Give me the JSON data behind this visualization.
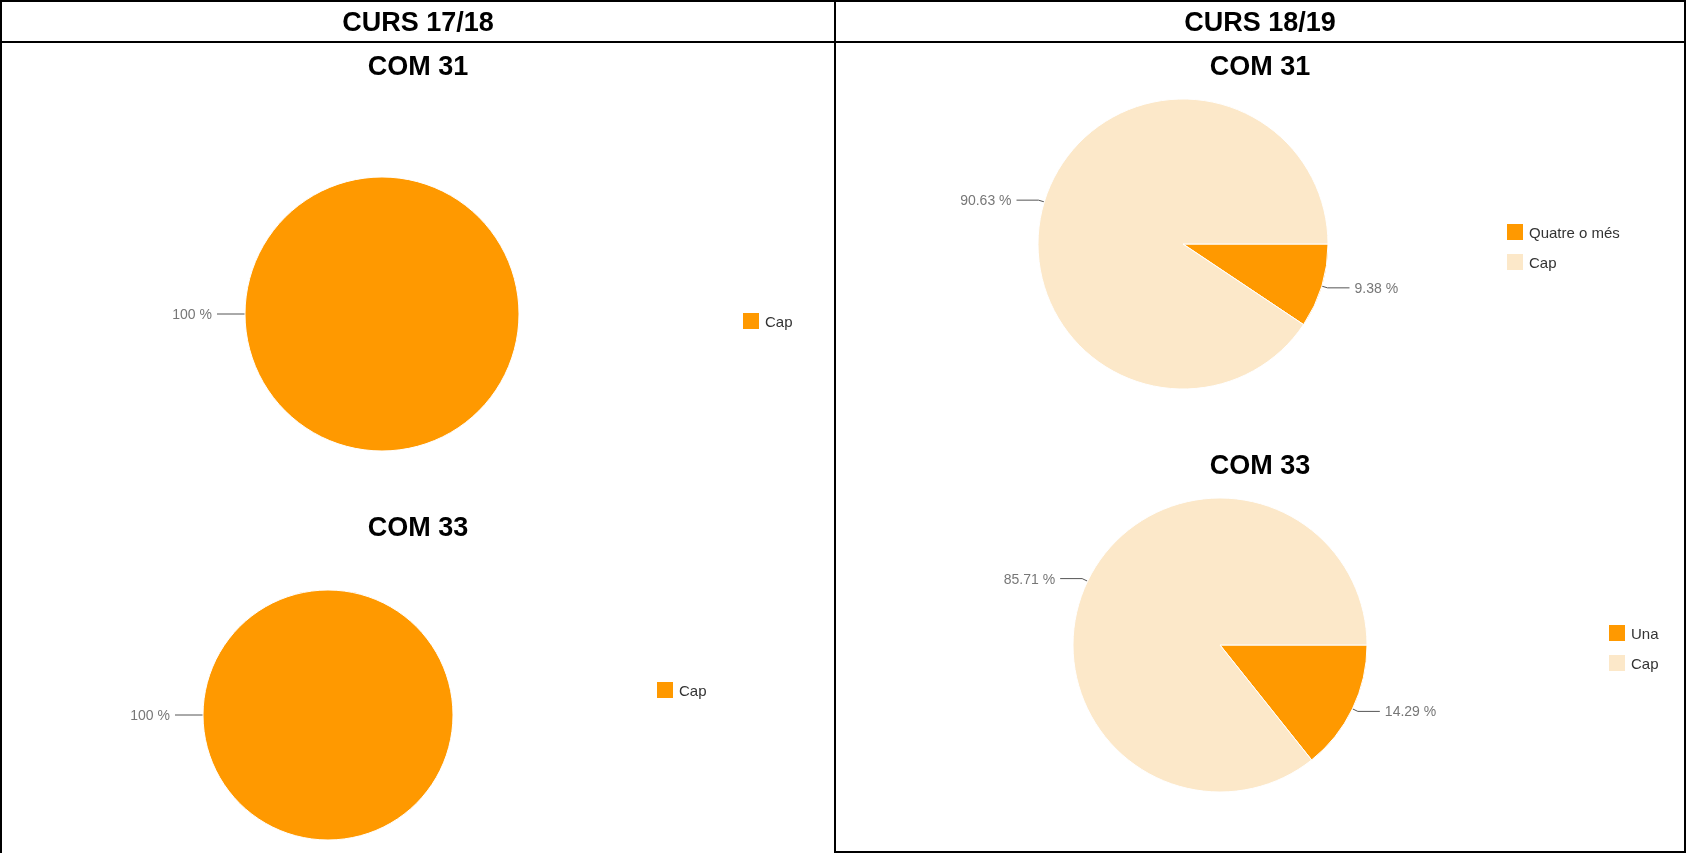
{
  "chart_data": [
    {
      "type": "pie",
      "subtitle": "CURS  17/18",
      "title": "COM 31",
      "categories": [
        "Cap"
      ],
      "values": [
        100
      ],
      "colors": [
        "#ff9900"
      ],
      "value_labels": [
        "100 %"
      ],
      "legend": "right"
    },
    {
      "type": "pie",
      "subtitle": "CURS  18/19",
      "title": "COM 31",
      "categories": [
        "Quatre o més",
        "Cap"
      ],
      "values": [
        9.38,
        90.63
      ],
      "colors": [
        "#ff9900",
        "#fce8c9"
      ],
      "value_labels": [
        "9.38 %",
        "90.63 %"
      ],
      "legend": "right"
    },
    {
      "type": "pie",
      "title": "COM 33",
      "categories": [
        "Cap"
      ],
      "values": [
        100
      ],
      "colors": [
        "#ff9900"
      ],
      "value_labels": [
        "100 %"
      ],
      "legend": "right"
    },
    {
      "type": "pie",
      "title": "COM 33",
      "categories": [
        "Una",
        "Cap"
      ],
      "values": [
        14.29,
        85.71
      ],
      "colors": [
        "#ff9900",
        "#fce8c9"
      ],
      "value_labels": [
        "14.29 %",
        "85.71 %"
      ],
      "legend": "right"
    }
  ]
}
